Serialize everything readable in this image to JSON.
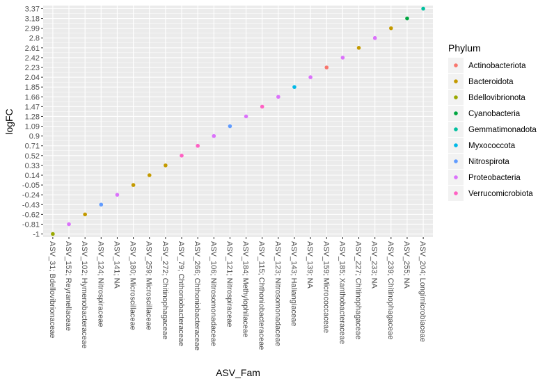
{
  "chart_data": {
    "type": "scatter",
    "xlabel": "ASV_Fam",
    "ylabel": "logFC",
    "grid": true,
    "legend_position": "right",
    "legend_title": "Phylum",
    "categories": [
      "ASV_31; Bdellovibrionaceae",
      "ASV_152; Reyranellaceae",
      "ASV_102; Hymenobacteraceae",
      "ASV_124; Nitrospiraceae",
      "ASV_141; NA",
      "ASV_180; Microscillaceae",
      "ASV_259; Microscillaceae",
      "ASV_272; Chitinophagaceae",
      "ASV_79; Chthoniobacteraceae",
      "ASV_266; Chthoniobacteraceae",
      "ASV_106; Nitrosomonadaceae",
      "ASV_121; Nitrospiraceae",
      "ASV_184; Methylophilaceae",
      "ASV_115; Chthoniobacteraceae",
      "ASV_123; Nitrosomonadaceae",
      "ASV_143; Haliangiaceae",
      "ASV_139; NA",
      "ASV_159; Micrococcaceae",
      "ASV_185; Xanthobacteraceae",
      "ASV_227; Chitinophagaceae",
      "ASV_233; NA",
      "ASV_239; Chitinophagaceae",
      "ASV_255; NA",
      "ASV_204; Longimicrobiaceae"
    ],
    "y_ticks": [
      "-1",
      "-0.81",
      "-0.62",
      "-0.43",
      "-0.24",
      "-0.05",
      "0.14",
      "0.33",
      "0.52",
      "0.71",
      "0.9",
      "1.09",
      "1.28",
      "1.47",
      "1.66",
      "1.85",
      "2.04",
      "2.23",
      "2.42",
      "2.61",
      "2.8",
      "2.99",
      "3.18",
      "3.37"
    ],
    "ylim": [
      -1.06,
      3.43
    ],
    "legend": [
      {
        "name": "Actinobacteriota",
        "color": "#F8766D"
      },
      {
        "name": "Bacteroidota",
        "color": "#C49A00"
      },
      {
        "name": "Bdellovibrionota",
        "color": "#99A800"
      },
      {
        "name": "Cyanobacteria",
        "color": "#00A641"
      },
      {
        "name": "Gemmatimonadota",
        "color": "#00BF9F"
      },
      {
        "name": "Myxococcota",
        "color": "#00B8E7"
      },
      {
        "name": "Nitrospirota",
        "color": "#619CFF"
      },
      {
        "name": "Proteobacteria",
        "color": "#DB72FB"
      },
      {
        "name": "Verrucomicrobiota",
        "color": "#FF61C3"
      }
    ],
    "points": [
      {
        "x": "ASV_31; Bdellovibrionaceae",
        "y": -1.0,
        "phylum": "Bdellovibrionota"
      },
      {
        "x": "ASV_152; Reyranellaceae",
        "y": -0.81,
        "phylum": "Proteobacteria"
      },
      {
        "x": "ASV_102; Hymenobacteraceae",
        "y": -0.62,
        "phylum": "Bacteroidota"
      },
      {
        "x": "ASV_124; Nitrospiraceae",
        "y": -0.43,
        "phylum": "Nitrospirota"
      },
      {
        "x": "ASV_141; NA",
        "y": -0.24,
        "phylum": "Proteobacteria"
      },
      {
        "x": "ASV_180; Microscillaceae",
        "y": -0.05,
        "phylum": "Bacteroidota"
      },
      {
        "x": "ASV_259; Microscillaceae",
        "y": 0.14,
        "phylum": "Bacteroidota"
      },
      {
        "x": "ASV_272; Chitinophagaceae",
        "y": 0.33,
        "phylum": "Bacteroidota"
      },
      {
        "x": "ASV_79; Chthoniobacteraceae",
        "y": 0.52,
        "phylum": "Verrucomicrobiota"
      },
      {
        "x": "ASV_266; Chthoniobacteraceae",
        "y": 0.71,
        "phylum": "Verrucomicrobiota"
      },
      {
        "x": "ASV_106; Nitrosomonadaceae",
        "y": 0.9,
        "phylum": "Proteobacteria"
      },
      {
        "x": "ASV_121; Nitrospiraceae",
        "y": 1.09,
        "phylum": "Nitrospirota"
      },
      {
        "x": "ASV_184; Methylophilaceae",
        "y": 1.28,
        "phylum": "Proteobacteria"
      },
      {
        "x": "ASV_115; Chthoniobacteraceae",
        "y": 1.47,
        "phylum": "Verrucomicrobiota"
      },
      {
        "x": "ASV_123; Nitrosomonadaceae",
        "y": 1.66,
        "phylum": "Proteobacteria"
      },
      {
        "x": "ASV_143; Haliangiaceae",
        "y": 1.85,
        "phylum": "Myxococcota"
      },
      {
        "x": "ASV_139; NA",
        "y": 2.04,
        "phylum": "Proteobacteria"
      },
      {
        "x": "ASV_159; Micrococcaceae",
        "y": 2.23,
        "phylum": "Actinobacteriota"
      },
      {
        "x": "ASV_185; Xanthobacteraceae",
        "y": 2.42,
        "phylum": "Proteobacteria"
      },
      {
        "x": "ASV_227; Chitinophagaceae",
        "y": 2.61,
        "phylum": "Bacteroidota"
      },
      {
        "x": "ASV_233; NA",
        "y": 2.8,
        "phylum": "Proteobacteria"
      },
      {
        "x": "ASV_239; Chitinophagaceae",
        "y": 2.99,
        "phylum": "Bacteroidota"
      },
      {
        "x": "ASV_255; NA",
        "y": 3.18,
        "phylum": "Cyanobacteria"
      },
      {
        "x": "ASV_204; Longimicrobiaceae",
        "y": 3.37,
        "phylum": "Gemmatimonadota"
      }
    ]
  }
}
